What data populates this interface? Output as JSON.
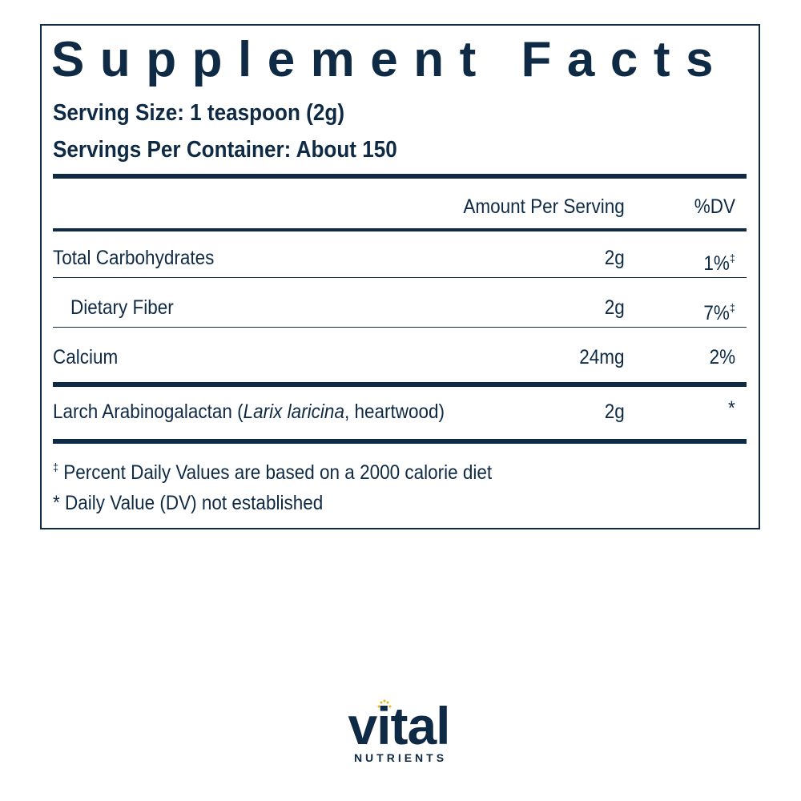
{
  "title": "Supplement Facts",
  "serving_size": "Serving Size: 1 teaspoon (2g)",
  "servings_per_container": "Servings Per Container: About 150",
  "table": {
    "header": [
      "Amount Per Serving",
      "%DV"
    ],
    "rows": [
      {
        "name": "Total Carbohydrates",
        "amount": "2g",
        "dv": "1%",
        "dv_mark": "‡"
      },
      {
        "name": "Dietary Fiber",
        "amount": "2g",
        "dv": "7%",
        "dv_mark": "‡"
      },
      {
        "name": "Calcium",
        "amount": "24mg",
        "dv": "2%"
      },
      {
        "name_parts": [
          "Larch Arabinogalactan (",
          "Larix laricina",
          ", heartwood)"
        ],
        "amount": "2g",
        "dv": "*"
      }
    ]
  },
  "footnotes": [
    {
      "symbol": "‡",
      "text": "Percent Daily Values are based on a 2000 calorie diet"
    },
    {
      "text": "* Daily Value (DV) not established"
    }
  ],
  "logo": {
    "name": "vital",
    "tagline": "NUTRIENTS"
  }
}
